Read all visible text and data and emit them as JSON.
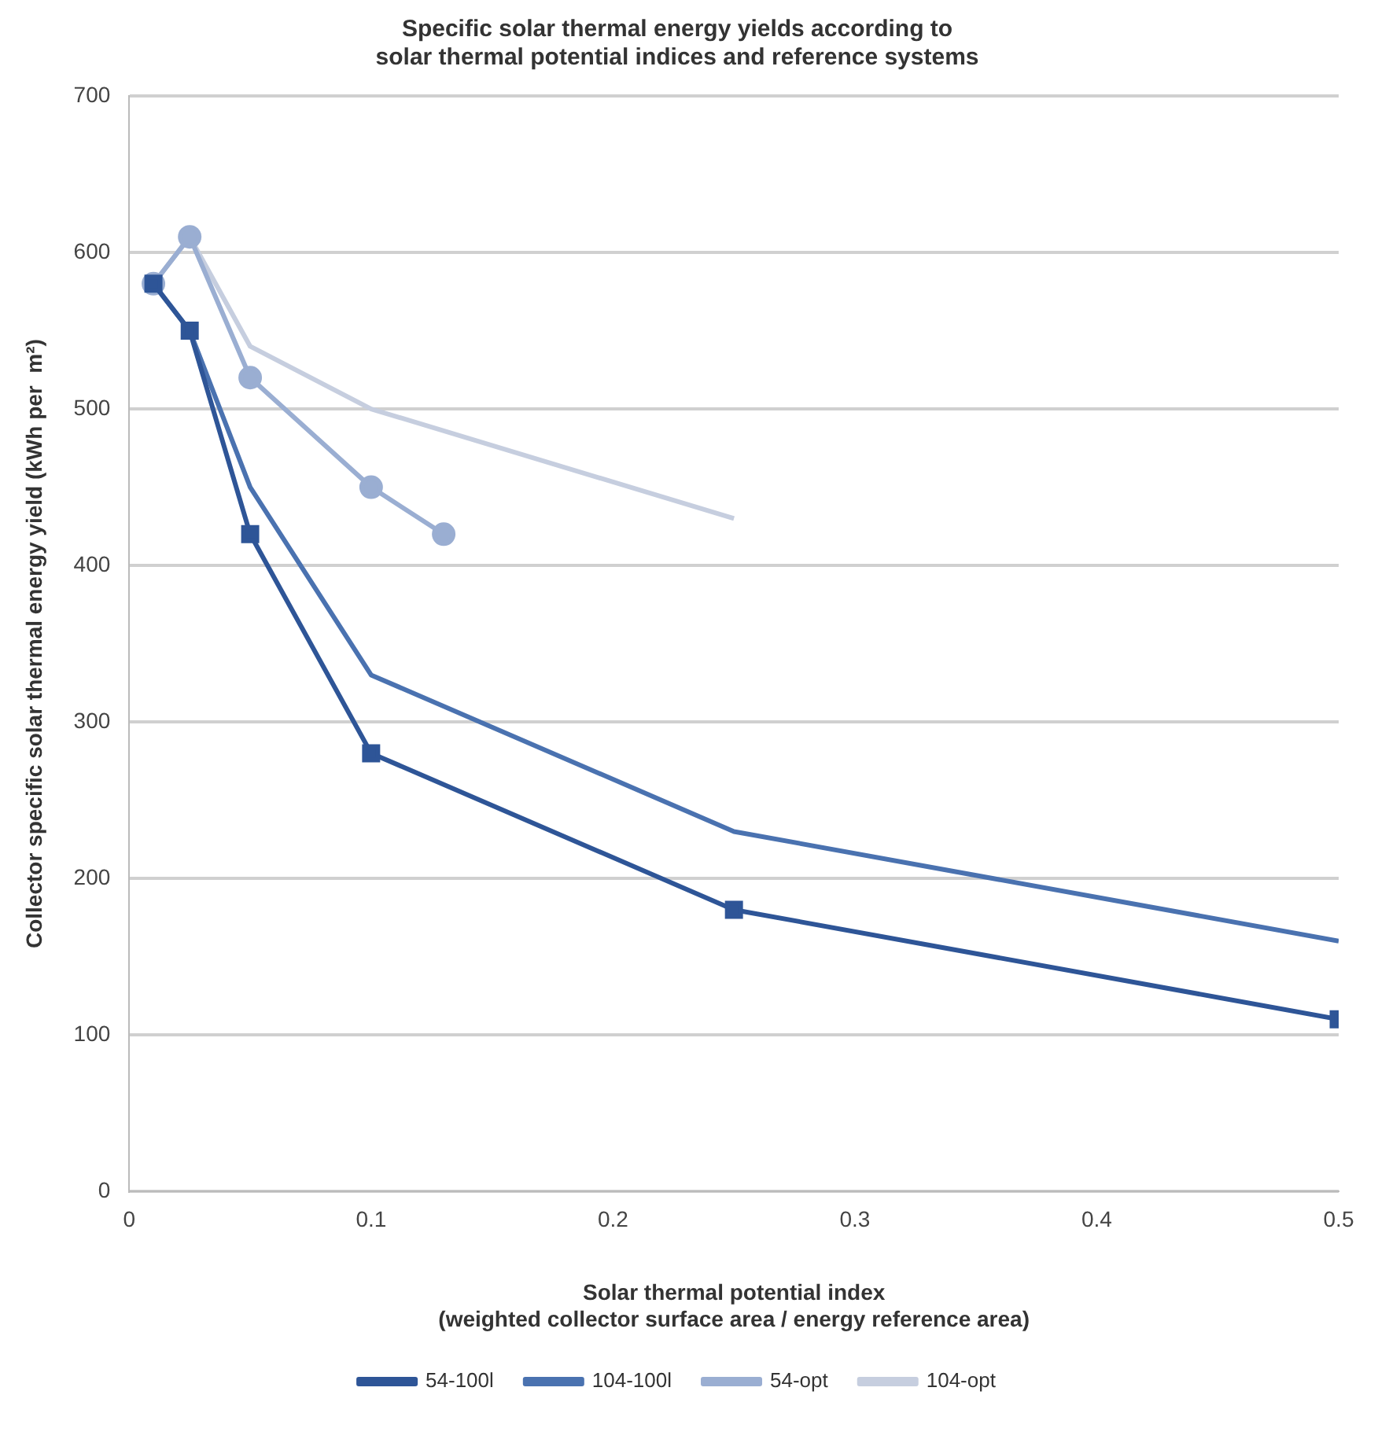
{
  "chart_data": {
    "type": "line",
    "title": "Specific solar thermal energy yields according to\nsolar thermal potential indices and reference systems",
    "xlabel": "Solar thermal potential index\n(weighted collector surface area / energy reference area)",
    "ylabel": "Collector specific solar thermal energy yield (kWh per  m²)",
    "xlim": [
      0,
      0.5
    ],
    "xticks": [
      0,
      0.1,
      0.2,
      0.3,
      0.4,
      0.5
    ],
    "ylim": [
      0,
      700
    ],
    "yticks": [
      0,
      100,
      200,
      300,
      400,
      500,
      600,
      700
    ],
    "grid": "y",
    "legend": "bottom",
    "series": [
      {
        "name": "54-100l",
        "color": "#2e5597",
        "marker": "square",
        "x": [
          0.01,
          0.025,
          0.05,
          0.1,
          0.25,
          0.5
        ],
        "values": [
          580,
          550,
          420,
          280,
          180,
          110
        ]
      },
      {
        "name": "104-100l",
        "color": "#4a72b0",
        "marker": "none",
        "x": [
          0.01,
          0.025,
          0.05,
          0.1,
          0.25,
          0.5
        ],
        "values": [
          580,
          550,
          450,
          330,
          230,
          160
        ]
      },
      {
        "name": "54-opt",
        "color": "#9aaed2",
        "marker": "circle",
        "x": [
          0.01,
          0.025,
          0.05,
          0.1,
          0.13
        ],
        "values": [
          580,
          610,
          520,
          450,
          420
        ]
      },
      {
        "name": "104-opt",
        "color": "#c6cedf",
        "marker": "none",
        "x": [
          0.01,
          0.025,
          0.05,
          0.1,
          0.25
        ],
        "values": [
          580,
          610,
          540,
          500,
          430
        ]
      }
    ]
  }
}
